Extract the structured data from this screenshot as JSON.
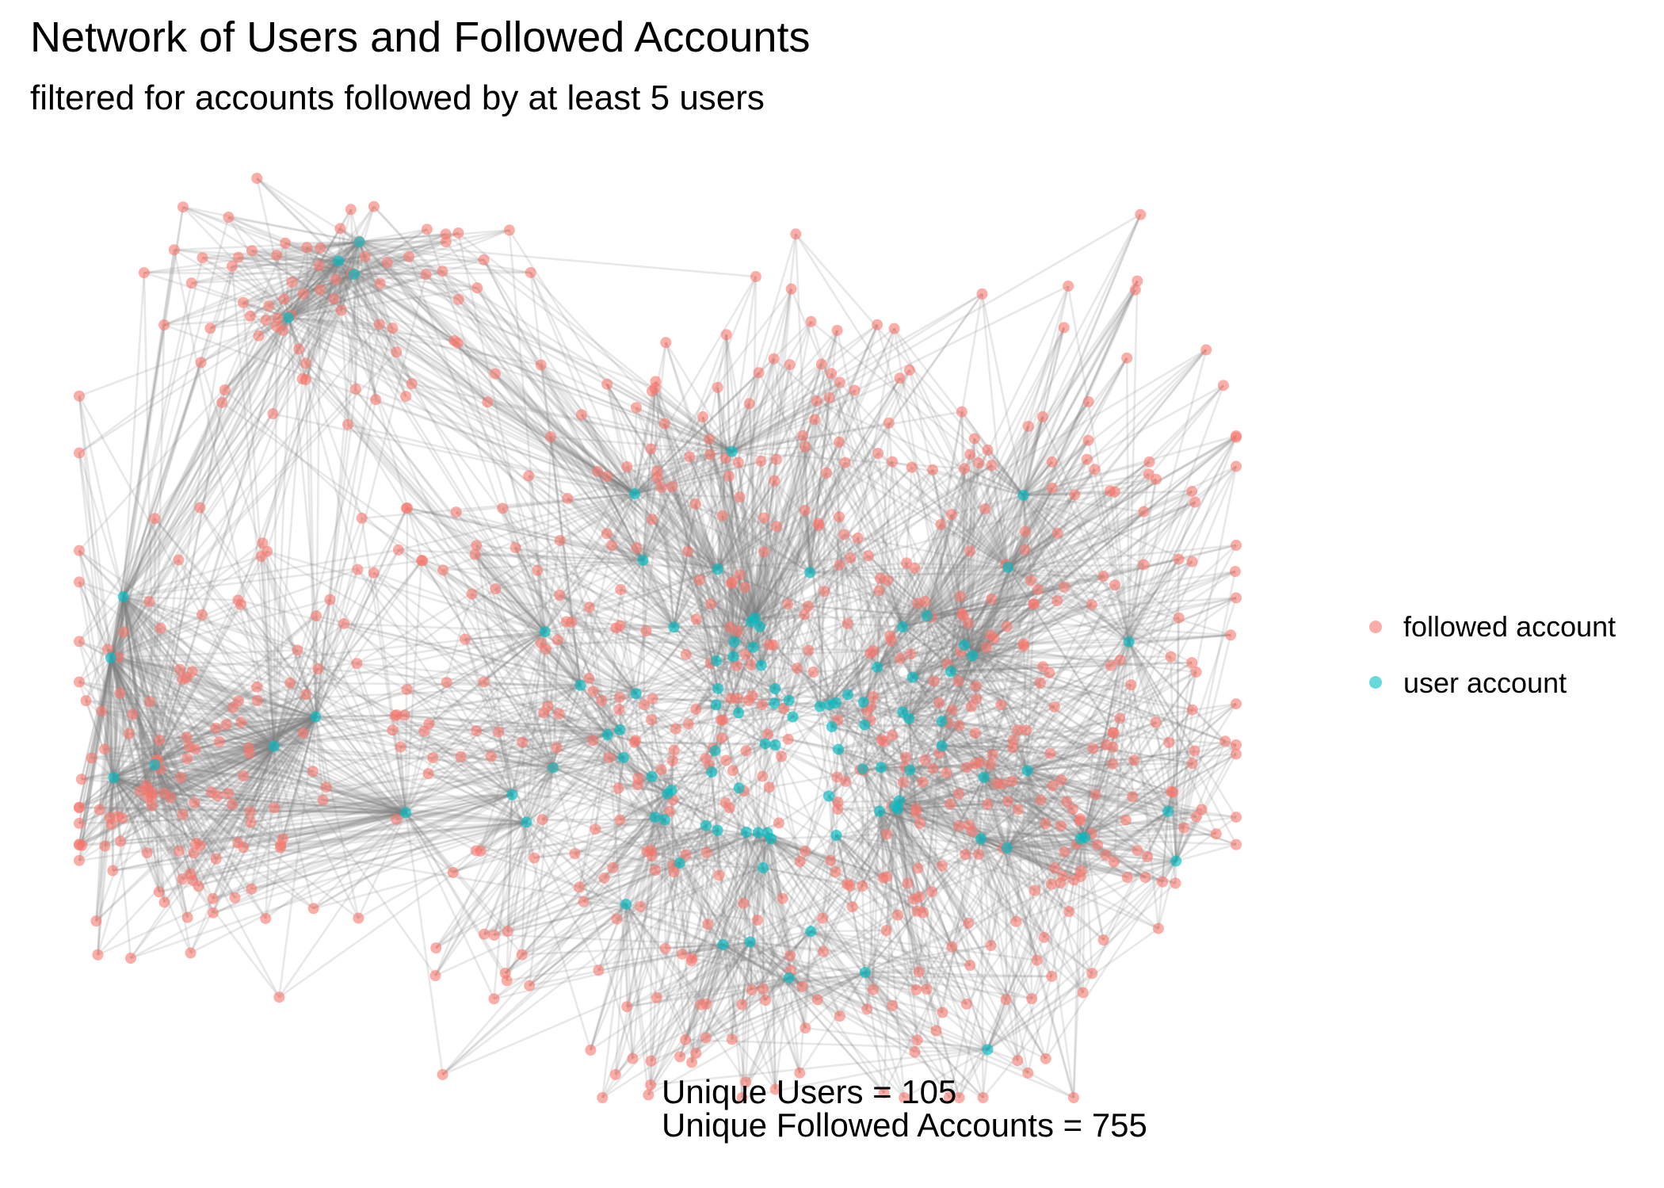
{
  "title": "Network of Users and Followed Accounts",
  "subtitle": "filtered for accounts followed by at least 5 users",
  "legend": {
    "items": [
      {
        "label": "followed account",
        "color": "#F8766D"
      },
      {
        "label": "user account",
        "color": "#00BFC4"
      }
    ]
  },
  "annotation": {
    "line1": "Unique Users =  105",
    "line2": "Unique Followed Accounts =  755"
  },
  "network": {
    "unique_users": 105,
    "unique_followed_accounts": 755,
    "edge_color": "#808080",
    "node_colors": {
      "followed": "#F8766D",
      "user": "#00BFC4"
    }
  }
}
